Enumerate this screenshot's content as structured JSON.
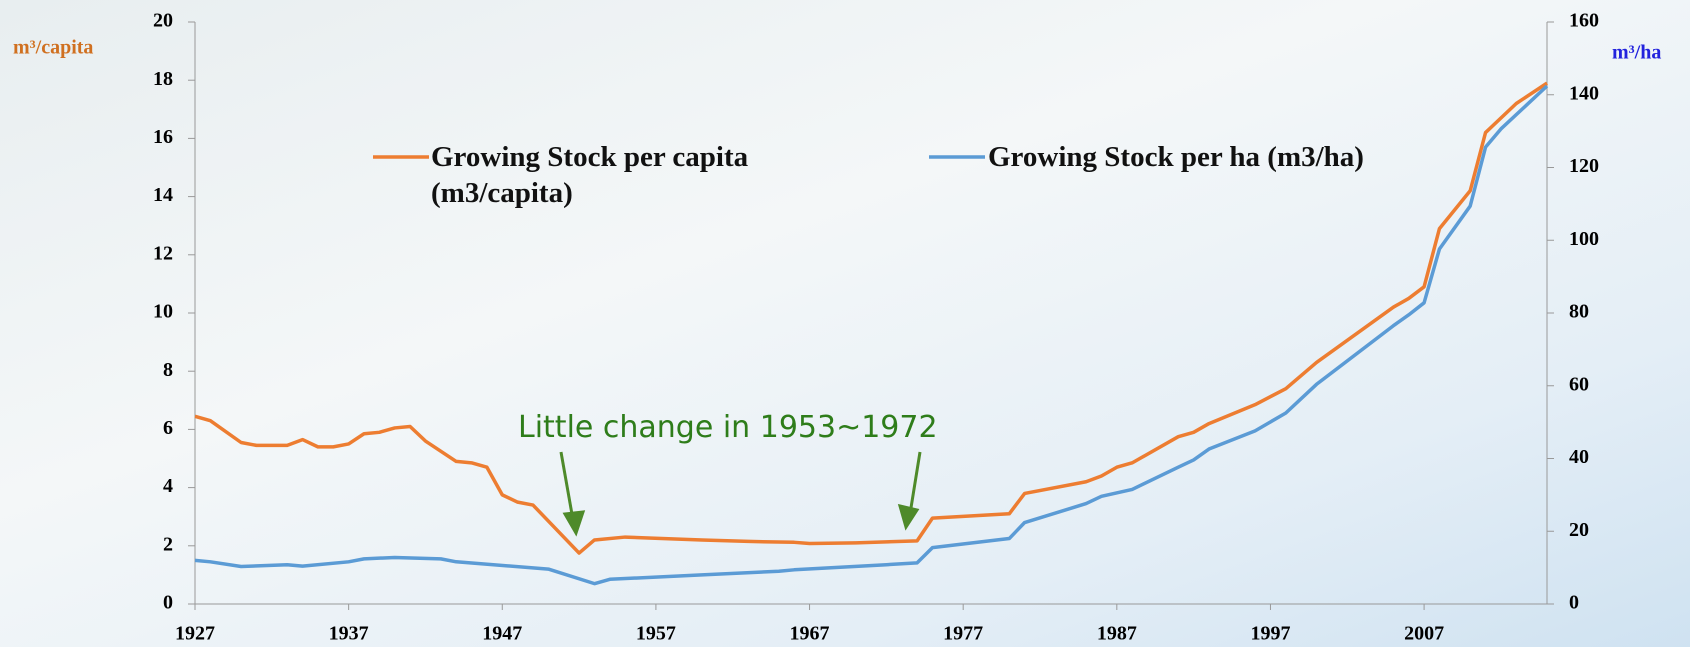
{
  "chart_data": {
    "type": "line",
    "ylabel": "m³/capita",
    "y2label": "m³/ha",
    "xlim": [
      1927,
      2015
    ],
    "xticks": [
      1927,
      1937,
      1947,
      1957,
      1967,
      1977,
      1987,
      1997,
      2007
    ],
    "ylim": [
      0,
      20
    ],
    "yticks": [
      0,
      2,
      4,
      6,
      8,
      10,
      12,
      14,
      16,
      18,
      20
    ],
    "y2lim": [
      0,
      160
    ],
    "y2ticks": [
      0,
      20,
      40,
      60,
      80,
      100,
      120,
      140,
      160
    ],
    "grid": false,
    "annotation": "Little change in 1953~1972",
    "series": [
      {
        "name": "Growing Stock per capita (m3/capita)",
        "color": "#ed7d31",
        "x": [
          1927,
          1928,
          1930,
          1931,
          1933,
          1934,
          1935,
          1936,
          1937,
          1938,
          1939,
          1940,
          1941,
          1942,
          1944,
          1945,
          1946,
          1947,
          1948,
          1949,
          1952,
          1953,
          1955,
          1960,
          1963,
          1966,
          1967,
          1970,
          1974,
          1975,
          1980,
          1981,
          1985,
          1986,
          1987,
          1988,
          1991,
          1992,
          1993,
          1996,
          1998,
          2000,
          2005,
          2006,
          2007,
          2008,
          2010,
          2011,
          2013,
          2015
        ],
        "values": [
          6.45,
          6.3,
          5.55,
          5.45,
          5.45,
          5.65,
          5.4,
          5.4,
          5.5,
          5.85,
          5.9,
          6.05,
          6.1,
          5.6,
          4.9,
          4.85,
          4.7,
          3.75,
          3.5,
          3.4,
          1.75,
          2.2,
          2.3,
          2.2,
          2.15,
          2.12,
          2.08,
          2.1,
          2.17,
          2.95,
          3.1,
          3.8,
          4.2,
          4.4,
          4.7,
          4.85,
          5.75,
          5.9,
          6.2,
          6.85,
          7.4,
          8.3,
          10.2,
          10.5,
          10.9,
          12.9,
          14.2,
          16.2,
          17.2,
          17.9
        ]
      },
      {
        "name": "Growing Stock per ha (m3/ha)",
        "color": "#5b9bd5",
        "axis": "y2",
        "x": [
          1927,
          1928,
          1930,
          1933,
          1934,
          1937,
          1938,
          1940,
          1943,
          1944,
          1950,
          1953,
          1954,
          1960,
          1965,
          1966,
          1972,
          1974,
          1975,
          1980,
          1981,
          1985,
          1986,
          1988,
          1991,
          1992,
          1993,
          1996,
          1998,
          2000,
          2005,
          2006,
          2007,
          2008,
          2010,
          2011,
          2012,
          2015
        ],
        "values": [
          12,
          11.6,
          10.3,
          10.8,
          10.4,
          11.6,
          12.4,
          12.8,
          12.4,
          11.6,
          9.6,
          5.6,
          6.8,
          8,
          9,
          9.4,
          10.8,
          11.3,
          15.5,
          18,
          22.4,
          27.6,
          29.6,
          31.5,
          37.6,
          39.6,
          42.6,
          47.6,
          52.5,
          60.4,
          76.5,
          79.5,
          82.8,
          97.6,
          109.4,
          125.6,
          130.6,
          142.4
        ]
      }
    ]
  }
}
